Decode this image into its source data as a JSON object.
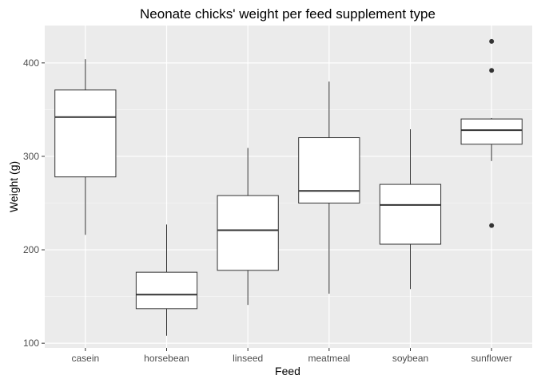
{
  "chart_data": {
    "type": "boxplot",
    "title": "Neonate chicks' weight per feed supplement type",
    "xlabel": "Feed",
    "ylabel": "Weight (g)",
    "ylim": [
      95,
      440
    ],
    "yticks": [
      100,
      200,
      300,
      400
    ],
    "grid": true,
    "categories": [
      "casein",
      "horsebean",
      "linseed",
      "meatmeal",
      "soybean",
      "sunflower"
    ],
    "boxes": [
      {
        "category": "casein",
        "whisker_low": 216,
        "q1": 278,
        "median": 342,
        "q3": 371,
        "whisker_high": 404,
        "outliers": []
      },
      {
        "category": "horsebean",
        "whisker_low": 108,
        "q1": 137,
        "median": 152,
        "q3": 176,
        "whisker_high": 227,
        "outliers": []
      },
      {
        "category": "linseed",
        "whisker_low": 141,
        "q1": 178,
        "median": 221,
        "q3": 258,
        "whisker_high": 309,
        "outliers": []
      },
      {
        "category": "meatmeal",
        "whisker_low": 153,
        "q1": 250,
        "median": 263,
        "q3": 320,
        "whisker_high": 380,
        "outliers": []
      },
      {
        "category": "soybean",
        "whisker_low": 158,
        "q1": 206,
        "median": 248,
        "q3": 270,
        "whisker_high": 329,
        "outliers": []
      },
      {
        "category": "sunflower",
        "whisker_low": 295,
        "q1": 313,
        "median": 328,
        "q3": 340,
        "whisker_high": 341,
        "outliers": [
          423,
          392,
          226
        ]
      }
    ],
    "colors": {
      "panel_background": "#ebebeb",
      "grid_major": "#ffffff",
      "box_fill": "#ffffff",
      "box_stroke": "#333333",
      "outlier": "#333333",
      "tick_label": "#4d4d4d"
    }
  }
}
